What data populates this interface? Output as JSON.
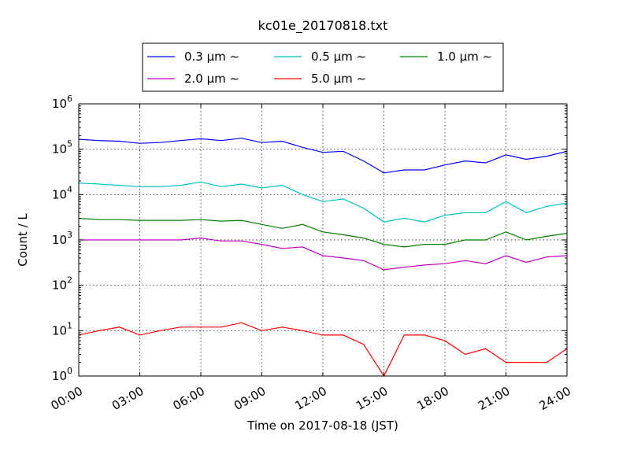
{
  "chart_data": {
    "type": "line",
    "title": "kc01e_20170818.txt",
    "xlabel": "Time on 2017-08-18 (JST)",
    "ylabel": "Count / L",
    "yscale": "log",
    "ylim": [
      1,
      1000000
    ],
    "xlim": [
      "00:00",
      "24:00"
    ],
    "grid": true,
    "legend": {
      "placement": "top",
      "columns": 3
    },
    "x_tick_labels": [
      "00:00",
      "03:00",
      "06:00",
      "09:00",
      "12:00",
      "15:00",
      "18:00",
      "21:00",
      "24:00"
    ],
    "y_tick_labels": [
      {
        "base": "10",
        "exp": "0"
      },
      {
        "base": "10",
        "exp": "1"
      },
      {
        "base": "10",
        "exp": "2"
      },
      {
        "base": "10",
        "exp": "3"
      },
      {
        "base": "10",
        "exp": "4"
      },
      {
        "base": "10",
        "exp": "5"
      },
      {
        "base": "10",
        "exp": "6"
      }
    ],
    "x": [
      "00:00",
      "01:00",
      "02:00",
      "03:00",
      "04:00",
      "05:00",
      "06:00",
      "07:00",
      "08:00",
      "09:00",
      "10:00",
      "11:00",
      "12:00",
      "13:00",
      "14:00",
      "15:00",
      "16:00",
      "17:00",
      "18:00",
      "19:00",
      "20:00",
      "21:00",
      "22:00",
      "23:00",
      "24:00"
    ],
    "series": [
      {
        "name": "0.3 μm ∼",
        "color": "#0000ff",
        "values": [
          165000,
          155000,
          150000,
          135000,
          140000,
          155000,
          170000,
          155000,
          175000,
          140000,
          150000,
          110000,
          85000,
          90000,
          55000,
          30000,
          35000,
          35000,
          45000,
          55000,
          50000,
          75000,
          60000,
          70000,
          90000
        ]
      },
      {
        "name": "0.5 μm ∼",
        "color": "#00bfbf",
        "values": [
          18000,
          17000,
          16000,
          15000,
          15000,
          16000,
          19000,
          15000,
          17000,
          14000,
          16000,
          10000,
          7000,
          8000,
          5000,
          2500,
          3000,
          2500,
          3500,
          4000,
          4000,
          7000,
          4000,
          5500,
          6500
        ]
      },
      {
        "name": "1.0 μm ∼",
        "color": "#008000",
        "values": [
          3000,
          2800,
          2800,
          2700,
          2700,
          2700,
          2800,
          2600,
          2700,
          2200,
          1800,
          2200,
          1500,
          1300,
          1100,
          800,
          700,
          800,
          800,
          1000,
          1000,
          1500,
          1000,
          1200,
          1400
        ]
      },
      {
        "name": "2.0 μm ∼",
        "color": "#bf00bf",
        "values": [
          1000,
          1000,
          1000,
          1000,
          1000,
          1000,
          1100,
          950,
          950,
          800,
          650,
          700,
          450,
          400,
          350,
          220,
          250,
          280,
          300,
          350,
          300,
          450,
          320,
          420,
          450
        ]
      },
      {
        "name": "5.0 μm ∼",
        "color": "#ff0000",
        "values": [
          8,
          10,
          12,
          8,
          10,
          12,
          12,
          12,
          15,
          10,
          12,
          10,
          8,
          8,
          5,
          1,
          8,
          8,
          6,
          3,
          4,
          2,
          2,
          2,
          4
        ]
      }
    ]
  }
}
